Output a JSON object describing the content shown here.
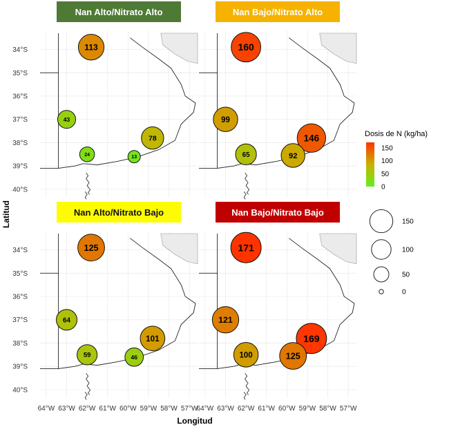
{
  "chart_data": {
    "type": "map-bubble",
    "axes": {
      "xlabel": "Longitud",
      "ylabel": "Latitud",
      "x_ticks": [
        -64,
        -63,
        -62,
        -61,
        -60,
        -59,
        -58,
        -57
      ],
      "x_tick_labels": [
        "64°W",
        "63°W",
        "62°W",
        "61°W",
        "60°W",
        "59°W",
        "58°W",
        "57°W"
      ],
      "y_ticks": [
        -34,
        -35,
        -36,
        -37,
        -38,
        -39,
        -40
      ],
      "y_tick_labels": [
        "34°S",
        "35°S",
        "36°S",
        "37°S",
        "38°S",
        "39°S",
        "40°S"
      ],
      "xlim": [
        -64.3,
        -56.6
      ],
      "ylim": [
        -40.3,
        -33.3
      ]
    },
    "colorbar": {
      "title": "Dosis de N (kg/ha)",
      "ticks": [
        150,
        100,
        50,
        0
      ],
      "range": [
        13,
        171
      ],
      "colors": [
        "#66ee22",
        "#c8b200",
        "#ff3300"
      ]
    },
    "size_legend": {
      "values": [
        150,
        100,
        50,
        0
      ],
      "labels": [
        "150",
        "100",
        "50",
        "0"
      ]
    },
    "panels": [
      {
        "title": "Nan Alto/Nitrato Alto",
        "title_bg": "#4e7a35",
        "title_text_color": "#ffffff",
        "points": [
          {
            "lon": -61.8,
            "lat": -33.9,
            "value": 113
          },
          {
            "lon": -63.0,
            "lat": -37.0,
            "value": 43
          },
          {
            "lon": -58.8,
            "lat": -37.8,
            "value": 78
          },
          {
            "lon": -62.0,
            "lat": -38.5,
            "value": 24
          },
          {
            "lon": -59.7,
            "lat": -38.6,
            "value": 13
          }
        ]
      },
      {
        "title": "Nan Bajo/Nitrato Alto",
        "title_bg": "#f5b200",
        "title_text_color": "#ffffff",
        "points": [
          {
            "lon": -62.0,
            "lat": -33.9,
            "value": 160
          },
          {
            "lon": -63.0,
            "lat": -37.0,
            "value": 99
          },
          {
            "lon": -58.8,
            "lat": -37.8,
            "value": 146
          },
          {
            "lon": -62.0,
            "lat": -38.5,
            "value": 65
          },
          {
            "lon": -59.7,
            "lat": -38.55,
            "value": 92
          }
        ]
      },
      {
        "title": "Nan Alto/Nitrato Bajo",
        "title_bg": "#fdfd00",
        "title_text_color": "#111111",
        "points": [
          {
            "lon": -61.8,
            "lat": -33.9,
            "value": 125
          },
          {
            "lon": -63.0,
            "lat": -37.0,
            "value": 64
          },
          {
            "lon": -58.8,
            "lat": -37.8,
            "value": 101
          },
          {
            "lon": -62.0,
            "lat": -38.5,
            "value": 59
          },
          {
            "lon": -59.7,
            "lat": -38.6,
            "value": 46
          }
        ]
      },
      {
        "title": "Nan Bajo/Nitrato Bajo",
        "title_bg": "#c00000",
        "title_text_color": "#ffffff",
        "points": [
          {
            "lon": -62.0,
            "lat": -33.9,
            "value": 171
          },
          {
            "lon": -63.0,
            "lat": -37.0,
            "value": 121
          },
          {
            "lon": -58.8,
            "lat": -37.8,
            "value": 169
          },
          {
            "lon": -62.0,
            "lat": -38.5,
            "value": 100
          },
          {
            "lon": -59.7,
            "lat": -38.55,
            "value": 125
          }
        ]
      }
    ]
  }
}
